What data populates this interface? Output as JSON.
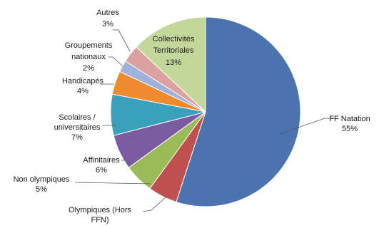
{
  "chart_data": {
    "type": "pie",
    "title": "",
    "legend": "none",
    "slices": [
      {
        "label": [
          "FF Natation",
          "55%"
        ],
        "value": 55,
        "color": "#4a73b0"
      },
      {
        "label": [
          "Olympiques (Hors",
          "FFN)"
        ],
        "value": 5,
        "color": "#c0504d"
      },
      {
        "label": [
          "Non olympiques",
          "5%"
        ],
        "value": 5,
        "color": "#9bbb59"
      },
      {
        "label": [
          "Affinitaires",
          "6%"
        ],
        "value": 6,
        "color": "#7a5aa0"
      },
      {
        "label": [
          "Scolaires /",
          "universitaires",
          "7%"
        ],
        "value": 7,
        "color": "#3aa0bb"
      },
      {
        "label": [
          "Handicapés",
          "4%"
        ],
        "value": 4,
        "color": "#f08a2e"
      },
      {
        "label": [
          "Groupements",
          "nationaux",
          "2%"
        ],
        "value": 2,
        "color": "#9fb2dc"
      },
      {
        "label": [
          "Autres",
          "3%"
        ],
        "value": 3,
        "color": "#dba0a0"
      },
      {
        "label": [
          "Collectivités",
          "Territoriales",
          "13%"
        ],
        "value": 13,
        "color": "#c4d79b"
      }
    ]
  }
}
